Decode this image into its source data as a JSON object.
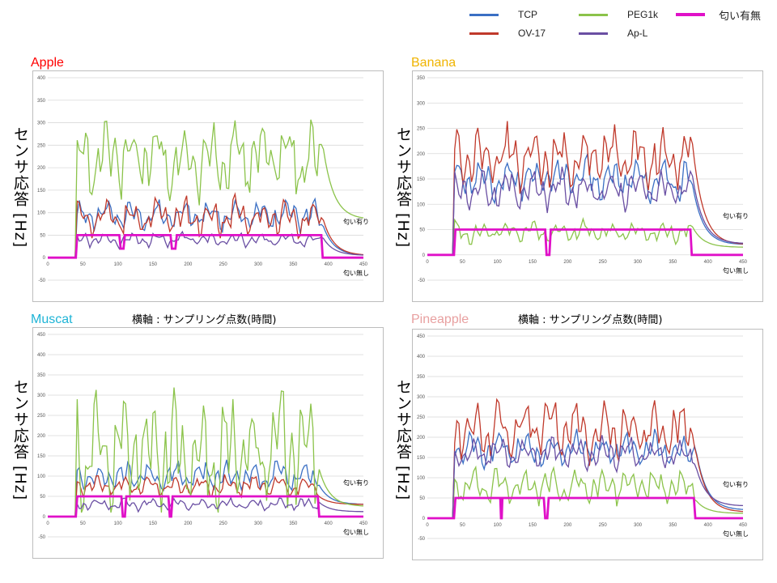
{
  "legend": [
    {
      "name": "TCP",
      "color": "#3a6fc4"
    },
    {
      "name": "OV-17",
      "color": "#c0392b"
    },
    {
      "name": "PEG1k",
      "color": "#8bc34a"
    },
    {
      "name": "Ap-L",
      "color": "#6a4fa3"
    },
    {
      "name": "匂い有無",
      "color": "#e010c8"
    }
  ],
  "ylabel": "センサ応答 [Hz]",
  "xlabel": "横軸 : サンプリング点数(時間)",
  "annot_on": "匂い有り",
  "annot_off": "匂い無し",
  "chart_data": [
    {
      "type": "line",
      "title": "Apple",
      "title_color": "#ff0000",
      "xlim": [
        0,
        450
      ],
      "ylim": [
        -50,
        400
      ],
      "xticks": [
        0,
        50,
        100,
        150,
        200,
        250,
        300,
        350,
        400,
        450
      ],
      "yticks": [
        -50,
        0,
        50,
        100,
        150,
        200,
        250,
        300,
        350,
        400
      ],
      "odor_segments": [
        [
          0,
          0
        ],
        [
          40,
          0
        ],
        [
          42,
          50
        ],
        [
          102,
          50
        ],
        [
          104,
          20
        ],
        [
          108,
          20
        ],
        [
          110,
          50
        ],
        [
          175,
          50
        ],
        [
          177,
          20
        ],
        [
          182,
          20
        ],
        [
          184,
          50
        ],
        [
          390,
          50
        ],
        [
          392,
          0
        ],
        [
          450,
          0
        ]
      ],
      "series": [
        {
          "name": "TCP",
          "base": 95,
          "amp": 30,
          "decay": 5
        },
        {
          "name": "OV-17",
          "base": 90,
          "amp": 40,
          "decay": 5
        },
        {
          "name": "PEG1k",
          "base": 220,
          "amp": 80,
          "decay": 85
        },
        {
          "name": "Ap-L",
          "base": 40,
          "amp": 15,
          "decay": 5
        }
      ]
    },
    {
      "type": "line",
      "title": "Banana",
      "title_color": "#f0b400",
      "xlim": [
        0,
        450
      ],
      "ylim": [
        -50,
        350
      ],
      "xticks": [
        0,
        50,
        100,
        150,
        200,
        250,
        300,
        350,
        400,
        450
      ],
      "yticks": [
        -50,
        0,
        50,
        100,
        150,
        200,
        250,
        300,
        350
      ],
      "odor_segments": [
        [
          0,
          0
        ],
        [
          38,
          0
        ],
        [
          40,
          50
        ],
        [
          168,
          50
        ],
        [
          170,
          0
        ],
        [
          174,
          0
        ],
        [
          176,
          50
        ],
        [
          375,
          50
        ],
        [
          377,
          0
        ],
        [
          450,
          0
        ]
      ],
      "series": [
        {
          "name": "TCP",
          "base": 150,
          "amp": 40,
          "decay": 20
        },
        {
          "name": "OV-17",
          "base": 190,
          "amp": 60,
          "decay": 20
        },
        {
          "name": "PEG1k",
          "base": 45,
          "amp": 20,
          "decay": 15
        },
        {
          "name": "Ap-L",
          "base": 130,
          "amp": 35,
          "decay": 22
        }
      ]
    },
    {
      "type": "line",
      "title": "Muscat",
      "title_color": "#1fb4d6",
      "xlim": [
        0,
        450
      ],
      "ylim": [
        -50,
        450
      ],
      "xticks": [
        0,
        50,
        100,
        150,
        200,
        250,
        300,
        350,
        400,
        450
      ],
      "yticks": [
        -50,
        0,
        50,
        100,
        150,
        200,
        250,
        300,
        350,
        400,
        450
      ],
      "odor_segments": [
        [
          0,
          0
        ],
        [
          40,
          0
        ],
        [
          42,
          50
        ],
        [
          105,
          50
        ],
        [
          107,
          0
        ],
        [
          110,
          0
        ],
        [
          112,
          50
        ],
        [
          172,
          50
        ],
        [
          174,
          0
        ],
        [
          176,
          0
        ],
        [
          178,
          50
        ],
        [
          385,
          50
        ],
        [
          387,
          0
        ],
        [
          450,
          0
        ]
      ],
      "series": [
        {
          "name": "TCP",
          "base": 100,
          "amp": 35,
          "decay": 30
        },
        {
          "name": "OV-17",
          "base": 75,
          "amp": 25,
          "decay": 30
        },
        {
          "name": "PEG1k",
          "base": 160,
          "amp": 150,
          "decay": 25
        },
        {
          "name": "Ap-L",
          "base": 30,
          "amp": 15,
          "decay": 12
        }
      ]
    },
    {
      "type": "line",
      "title": "Pineapple",
      "title_color": "#e8a0a0",
      "xlim": [
        0,
        450
      ],
      "ylim": [
        -50,
        450
      ],
      "xticks": [
        0,
        50,
        100,
        150,
        200,
        250,
        300,
        350,
        400,
        450
      ],
      "yticks": [
        -50,
        0,
        50,
        100,
        150,
        200,
        250,
        300,
        350,
        400,
        450
      ],
      "odor_segments": [
        [
          0,
          0
        ],
        [
          38,
          0
        ],
        [
          40,
          50
        ],
        [
          104,
          50
        ],
        [
          105,
          0
        ],
        [
          106,
          0
        ],
        [
          107,
          50
        ],
        [
          166,
          50
        ],
        [
          168,
          0
        ],
        [
          171,
          0
        ],
        [
          173,
          50
        ],
        [
          380,
          50
        ],
        [
          382,
          0
        ],
        [
          450,
          0
        ]
      ],
      "series": [
        {
          "name": "TCP",
          "base": 170,
          "amp": 40,
          "decay": 20
        },
        {
          "name": "OV-17",
          "base": 220,
          "amp": 70,
          "decay": 15
        },
        {
          "name": "PEG1k",
          "base": 80,
          "amp": 40,
          "decay": 12
        },
        {
          "name": "Ap-L",
          "base": 160,
          "amp": 35,
          "decay": 30
        }
      ]
    }
  ]
}
